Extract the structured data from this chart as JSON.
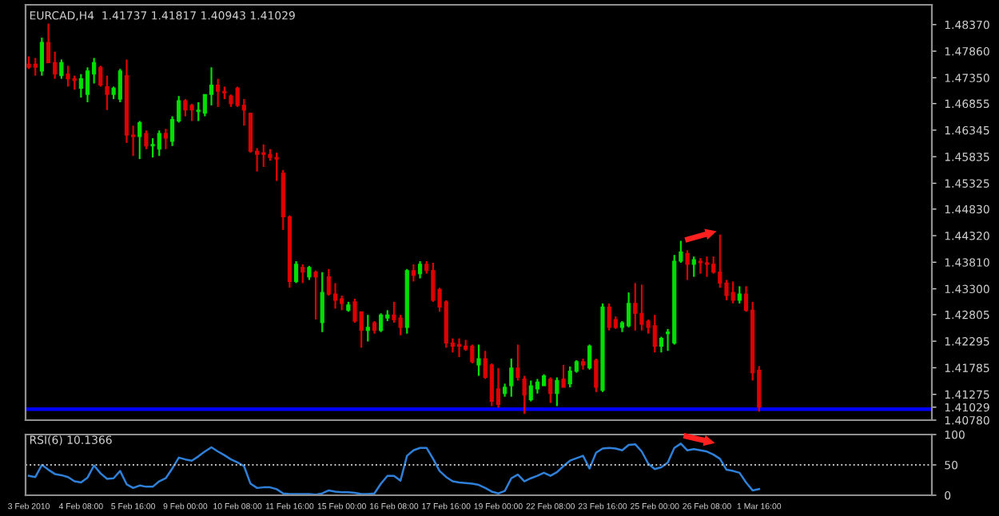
{
  "chart_data": [
    {
      "type": "candlestick",
      "title": "EURCAD,H4  1.41737 1.41817 1.40943 1.41029",
      "categories": [
        null,
        null,
        null,
        null,
        null,
        null,
        null,
        null,
        null,
        null,
        null,
        null,
        null,
        null,
        null,
        null,
        null,
        null,
        null,
        null,
        null,
        null,
        null,
        null,
        null,
        null,
        null,
        null,
        null,
        null,
        null,
        null,
        null,
        null,
        null,
        null,
        null,
        null,
        null,
        null,
        null,
        null,
        null,
        null,
        null,
        null,
        null,
        null,
        null,
        null,
        null,
        null,
        null,
        null,
        null,
        null,
        null,
        null,
        null,
        null,
        null,
        null,
        null,
        null,
        null,
        null,
        null,
        null,
        null,
        null,
        null,
        null,
        null,
        null,
        null,
        null,
        null,
        null,
        null,
        null,
        null,
        null,
        null,
        null,
        null,
        null,
        null,
        null,
        null,
        null,
        null,
        null,
        null,
        null,
        null,
        null,
        null,
        null,
        null,
        null,
        null,
        null,
        null,
        null,
        null,
        null,
        null,
        null,
        null,
        null,
        null,
        null,
        null,
        null,
        null,
        null,
        null,
        null,
        null,
        null,
        null,
        null,
        null,
        null,
        null,
        null,
        null,
        null,
        null,
        null,
        null,
        null,
        null,
        null,
        null,
        null,
        null,
        null,
        null
      ],
      "ohlc": [
        [
          1.4761,
          1.4776,
          1.4752,
          1.4755
        ],
        [
          1.4761,
          1.4773,
          1.4739,
          1.4755
        ],
        [
          1.4748,
          1.4812,
          1.4739,
          1.4803
        ],
        [
          1.4803,
          1.4839,
          1.4764,
          1.4764
        ],
        [
          1.4764,
          1.4785,
          1.4733,
          1.4742
        ],
        [
          1.4739,
          1.477,
          1.4733,
          1.4764
        ],
        [
          1.4742,
          1.4758,
          1.4718,
          1.4733
        ],
        [
          1.4733,
          1.4739,
          1.4712,
          1.473
        ],
        [
          1.4715,
          1.4742,
          1.4697,
          1.4733
        ],
        [
          1.4703,
          1.4755,
          1.4688,
          1.4748
        ],
        [
          1.4742,
          1.4773,
          1.4724,
          1.4764
        ],
        [
          1.4755,
          1.4758,
          1.4718,
          1.4721
        ],
        [
          1.4718,
          1.4739,
          1.4673,
          1.4703
        ],
        [
          1.4703,
          1.4718,
          1.4694,
          1.4715
        ],
        [
          1.4694,
          1.4752,
          1.4688,
          1.4748
        ],
        [
          1.4739,
          1.477,
          1.461,
          1.4625
        ],
        [
          1.4625,
          1.4643,
          1.4585,
          1.4622
        ],
        [
          1.4622,
          1.4652,
          1.4579,
          1.4649
        ],
        [
          1.4628,
          1.4634,
          1.4598,
          1.4604
        ],
        [
          1.4604,
          1.4619,
          1.4582,
          1.4607
        ],
        [
          1.4598,
          1.4634,
          1.4585,
          1.4628
        ],
        [
          1.4628,
          1.4637,
          1.4598,
          1.4619
        ],
        [
          1.4613,
          1.4661,
          1.4604,
          1.4655
        ],
        [
          1.4652,
          1.47,
          1.4649,
          1.4691
        ],
        [
          1.4691,
          1.4694,
          1.4661,
          1.4673
        ],
        [
          1.4682,
          1.4685,
          1.4652,
          1.4673
        ],
        [
          1.467,
          1.4688,
          1.4652,
          1.4673
        ],
        [
          1.4667,
          1.4703,
          1.4661,
          1.4703
        ],
        [
          1.4703,
          1.4755,
          1.4682,
          1.4721
        ],
        [
          1.4721,
          1.4733,
          1.4679,
          1.4709
        ],
        [
          1.4709,
          1.4718,
          1.4694,
          1.4706
        ],
        [
          1.47,
          1.4703,
          1.4679,
          1.4685
        ],
        [
          1.4715,
          1.4718,
          1.4679,
          1.4682
        ],
        [
          1.4682,
          1.4694,
          1.4643,
          1.4673
        ],
        [
          1.4667,
          1.4667,
          1.4591,
          1.4594
        ],
        [
          1.4594,
          1.46,
          1.4555,
          1.4588
        ],
        [
          1.4591,
          1.4607,
          1.4564,
          1.4588
        ],
        [
          1.4588,
          1.4598,
          1.4576,
          1.4582
        ],
        [
          1.4582,
          1.4591,
          1.4537,
          1.4579
        ],
        [
          1.4552,
          1.4558,
          1.4443,
          1.4468
        ],
        [
          1.4468,
          1.4471,
          1.4332,
          1.4344
        ],
        [
          1.4344,
          1.4383,
          1.4341,
          1.4377
        ],
        [
          1.4371,
          1.4377,
          1.4341,
          1.4362
        ],
        [
          1.4353,
          1.4374,
          1.4347,
          1.4371
        ],
        [
          1.4362,
          1.4365,
          1.4271,
          1.4353
        ],
        [
          1.4265,
          1.4362,
          1.4247,
          1.4323
        ],
        [
          1.4353,
          1.4368,
          1.4317,
          1.432
        ],
        [
          1.432,
          1.4341,
          1.4292,
          1.4308
        ],
        [
          1.4311,
          1.4317,
          1.4289,
          1.4302
        ],
        [
          1.4289,
          1.4305,
          1.4286,
          1.4299
        ],
        [
          1.4305,
          1.4311,
          1.4265,
          1.4268
        ],
        [
          1.4286,
          1.4286,
          1.4217,
          1.425
        ],
        [
          1.425,
          1.428,
          1.4229,
          1.4256
        ],
        [
          1.4265,
          1.4268,
          1.4244,
          1.425
        ],
        [
          1.425,
          1.4283,
          1.4247,
          1.428
        ],
        [
          1.4274,
          1.4289,
          1.4268,
          1.428
        ],
        [
          1.428,
          1.4305,
          1.4265,
          1.4271
        ],
        [
          1.4274,
          1.428,
          1.4241,
          1.4256
        ],
        [
          1.4256,
          1.4368,
          1.4244,
          1.4365
        ],
        [
          1.4365,
          1.4377,
          1.4344,
          1.4356
        ],
        [
          1.4359,
          1.4383,
          1.435,
          1.4377
        ],
        [
          1.4377,
          1.4383,
          1.4359,
          1.4365
        ],
        [
          1.4365,
          1.438,
          1.4305,
          1.4308
        ],
        [
          1.4329,
          1.4332,
          1.4286,
          1.4295
        ],
        [
          1.4305,
          1.4308,
          1.4217,
          1.4226
        ],
        [
          1.4226,
          1.4235,
          1.4208,
          1.422
        ],
        [
          1.4223,
          1.4235,
          1.4199,
          1.422
        ],
        [
          1.422,
          1.4232,
          1.4211,
          1.4214
        ],
        [
          1.422,
          1.4223,
          1.4187,
          1.419
        ],
        [
          1.4184,
          1.4223,
          1.4163,
          1.4196
        ],
        [
          1.4196,
          1.4211,
          1.4157,
          1.416
        ],
        [
          1.4184,
          1.4187,
          1.4105,
          1.4114
        ],
        [
          1.4138,
          1.4178,
          1.4102,
          1.4108
        ],
        [
          1.4129,
          1.4148,
          1.4123,
          1.4141
        ],
        [
          1.4144,
          1.4196,
          1.4123,
          1.4178
        ],
        [
          1.4178,
          1.4223,
          1.4154,
          1.416
        ],
        [
          1.4157,
          1.4163,
          1.409,
          1.4126
        ],
        [
          1.4117,
          1.4154,
          1.4114,
          1.4144
        ],
        [
          1.4138,
          1.4157,
          1.4129,
          1.4151
        ],
        [
          1.4144,
          1.4166,
          1.4144,
          1.4163
        ],
        [
          1.4157,
          1.416,
          1.4111,
          1.4129
        ],
        [
          1.4129,
          1.416,
          1.4105,
          1.4154
        ],
        [
          1.4157,
          1.4184,
          1.4141,
          1.4141
        ],
        [
          1.4148,
          1.4181,
          1.4141,
          1.4172
        ],
        [
          1.4172,
          1.4193,
          1.4169,
          1.419
        ],
        [
          1.419,
          1.4196,
          1.4175,
          1.4184
        ],
        [
          1.4178,
          1.4223,
          1.4175,
          1.422
        ],
        [
          1.4193,
          1.4196,
          1.4132,
          1.4141
        ],
        [
          1.4135,
          1.4302,
          1.4132,
          1.4295
        ],
        [
          1.4295,
          1.4302,
          1.425,
          1.4256
        ],
        [
          1.4271,
          1.4277,
          1.4253,
          1.4256
        ],
        [
          1.4256,
          1.4268,
          1.4247,
          1.4265
        ],
        [
          1.4259,
          1.4323,
          1.4256,
          1.4302
        ],
        [
          1.4302,
          1.4341,
          1.425,
          1.4283
        ],
        [
          1.4283,
          1.4338,
          1.425,
          1.4262
        ],
        [
          1.4268,
          1.4271,
          1.4244,
          1.4256
        ],
        [
          1.4259,
          1.428,
          1.4208,
          1.422
        ],
        [
          1.422,
          1.4238,
          1.4208,
          1.4235
        ],
        [
          1.4244,
          1.4253,
          1.4211,
          1.4247
        ],
        [
          1.4226,
          1.4395,
          1.4223,
          1.4383
        ],
        [
          1.4383,
          1.4422,
          1.438,
          1.4401
        ],
        [
          1.4398,
          1.4404,
          1.4347,
          1.4377
        ],
        [
          1.4377,
          1.4392,
          1.4353,
          1.4386
        ],
        [
          1.4383,
          1.4389,
          1.4359,
          1.438
        ],
        [
          1.438,
          1.4392,
          1.4353,
          1.4377
        ],
        [
          1.4377,
          1.4392,
          1.4359,
          1.4362
        ],
        [
          1.4362,
          1.4434,
          1.4332,
          1.4341
        ],
        [
          1.4341,
          1.4347,
          1.4308,
          1.4317
        ],
        [
          1.4323,
          1.4344,
          1.4302,
          1.4308
        ],
        [
          1.4308,
          1.4335,
          1.4302,
          1.432
        ],
        [
          1.432,
          1.4335,
          1.4286,
          1.4289
        ],
        [
          1.4289,
          1.4305,
          1.4154,
          1.4169
        ],
        [
          1.41737,
          1.41817,
          1.40943,
          1.41029
        ],
        null,
        null,
        null,
        null,
        null,
        null,
        null,
        null,
        null,
        null,
        null,
        null,
        null,
        null,
        null,
        null,
        null,
        null,
        null,
        null,
        null,
        null,
        null,
        null,
        null,
        null
      ],
      "ylim": [
        1.4078,
        1.4875
      ],
      "yticks": [
        {
          "value": 1.4837,
          "label": "1.48370"
        },
        {
          "value": 1.4786,
          "label": "1.47860"
        },
        {
          "value": 1.4735,
          "label": "1.47350"
        },
        {
          "value": 1.46855,
          "label": "1.46855"
        },
        {
          "value": 1.46345,
          "label": "1.46345"
        },
        {
          "value": 1.45835,
          "label": "1.45835"
        },
        {
          "value": 1.45325,
          "label": "1.45325"
        },
        {
          "value": 1.4483,
          "label": "1.44830"
        },
        {
          "value": 1.4432,
          "label": "1.44320"
        },
        {
          "value": 1.4381,
          "label": "1.43810"
        },
        {
          "value": 1.433,
          "label": "1.43300"
        },
        {
          "value": 1.42805,
          "label": "1.42805"
        },
        {
          "value": 1.42295,
          "label": "1.42295"
        },
        {
          "value": 1.41785,
          "label": "1.41785"
        },
        {
          "value": 1.41275,
          "label": "1.41275"
        },
        {
          "value": 1.41029,
          "label": "1.41029"
        },
        {
          "value": 1.4078,
          "label": "1.40780"
        }
      ],
      "ref_lines": [
        {
          "axis": "y",
          "value": 1.4099,
          "label": null,
          "color": "#0000ff",
          "line_style": "solid"
        }
      ],
      "tick_labels": "y",
      "grid": false,
      "legend": false
    },
    {
      "type": "line",
      "title": "RSI(6) 10.1366",
      "categories": [
        "3 Feb 2010",
        null,
        null,
        null,
        null,
        null,
        null,
        null,
        "4 Feb 08:00",
        null,
        null,
        null,
        null,
        null,
        null,
        null,
        "5 Feb 16:00",
        null,
        null,
        null,
        null,
        null,
        null,
        null,
        "9 Feb 00:00",
        null,
        null,
        null,
        null,
        null,
        null,
        null,
        "10 Feb 08:00",
        null,
        null,
        null,
        null,
        null,
        null,
        null,
        "11 Feb 16:00",
        null,
        null,
        null,
        null,
        null,
        null,
        null,
        "15 Feb 00:00",
        null,
        null,
        null,
        null,
        null,
        null,
        null,
        "16 Feb 08:00",
        null,
        null,
        null,
        null,
        null,
        null,
        null,
        "17 Feb 16:00",
        null,
        null,
        null,
        null,
        null,
        null,
        null,
        "19 Feb 00:00",
        null,
        null,
        null,
        null,
        null,
        null,
        null,
        "22 Feb 08:00",
        null,
        null,
        null,
        null,
        null,
        null,
        null,
        "23 Feb 16:00",
        null,
        null,
        null,
        null,
        null,
        null,
        null,
        "25 Feb 00:00",
        null,
        null,
        null,
        null,
        null,
        null,
        null,
        "26 Feb 08:00",
        null,
        null,
        null,
        null,
        null,
        null,
        null,
        "1 Mar 16:00",
        null,
        null,
        null,
        null,
        null,
        null,
        null,
        null,
        null,
        null,
        null,
        null,
        null,
        null,
        null,
        null,
        null,
        null,
        null,
        null,
        null,
        null,
        null,
        null,
        null,
        null
      ],
      "series": [
        {
          "color": "#2f80d8",
          "values": [
            32,
            30,
            50,
            42,
            35,
            33,
            30,
            23,
            21,
            29,
            49,
            36,
            27,
            28,
            40,
            18,
            12,
            16,
            14,
            14,
            23,
            28,
            44,
            62,
            59,
            57,
            64,
            72,
            79,
            72,
            66,
            59,
            54,
            48,
            19,
            12,
            13,
            13,
            10,
            3,
            2,
            2,
            2,
            2,
            1,
            3,
            8,
            6,
            5,
            5,
            4,
            2,
            2,
            3,
            19,
            32,
            32,
            24,
            65,
            74,
            78,
            78,
            60,
            40,
            30,
            23,
            21,
            20,
            19,
            17,
            12,
            6,
            3,
            7,
            28,
            34,
            23,
            28,
            32,
            37,
            32,
            38,
            48,
            57,
            61,
            65,
            44,
            70,
            77,
            78,
            77,
            74,
            83,
            84,
            72,
            52,
            43,
            46,
            54,
            78,
            85,
            74,
            76,
            74,
            72,
            67,
            60,
            42,
            40,
            37,
            21,
            8,
            10.1366,
            null,
            null,
            null,
            null,
            null,
            null,
            null,
            null,
            null,
            null,
            null,
            null,
            null,
            null,
            null,
            null,
            null,
            null,
            null,
            null,
            null,
            null,
            null,
            null,
            null,
            null
          ]
        }
      ],
      "ylim": [
        0,
        100
      ],
      "yticks": [
        0,
        50,
        100
      ],
      "ref_lines": [
        {
          "axis": "y",
          "value": 50,
          "label": null,
          "color": "#c0c0c0",
          "line_style": "dotted"
        }
      ],
      "marker": "none",
      "line_style": "solid",
      "grid": false,
      "legend": false
    }
  ]
}
